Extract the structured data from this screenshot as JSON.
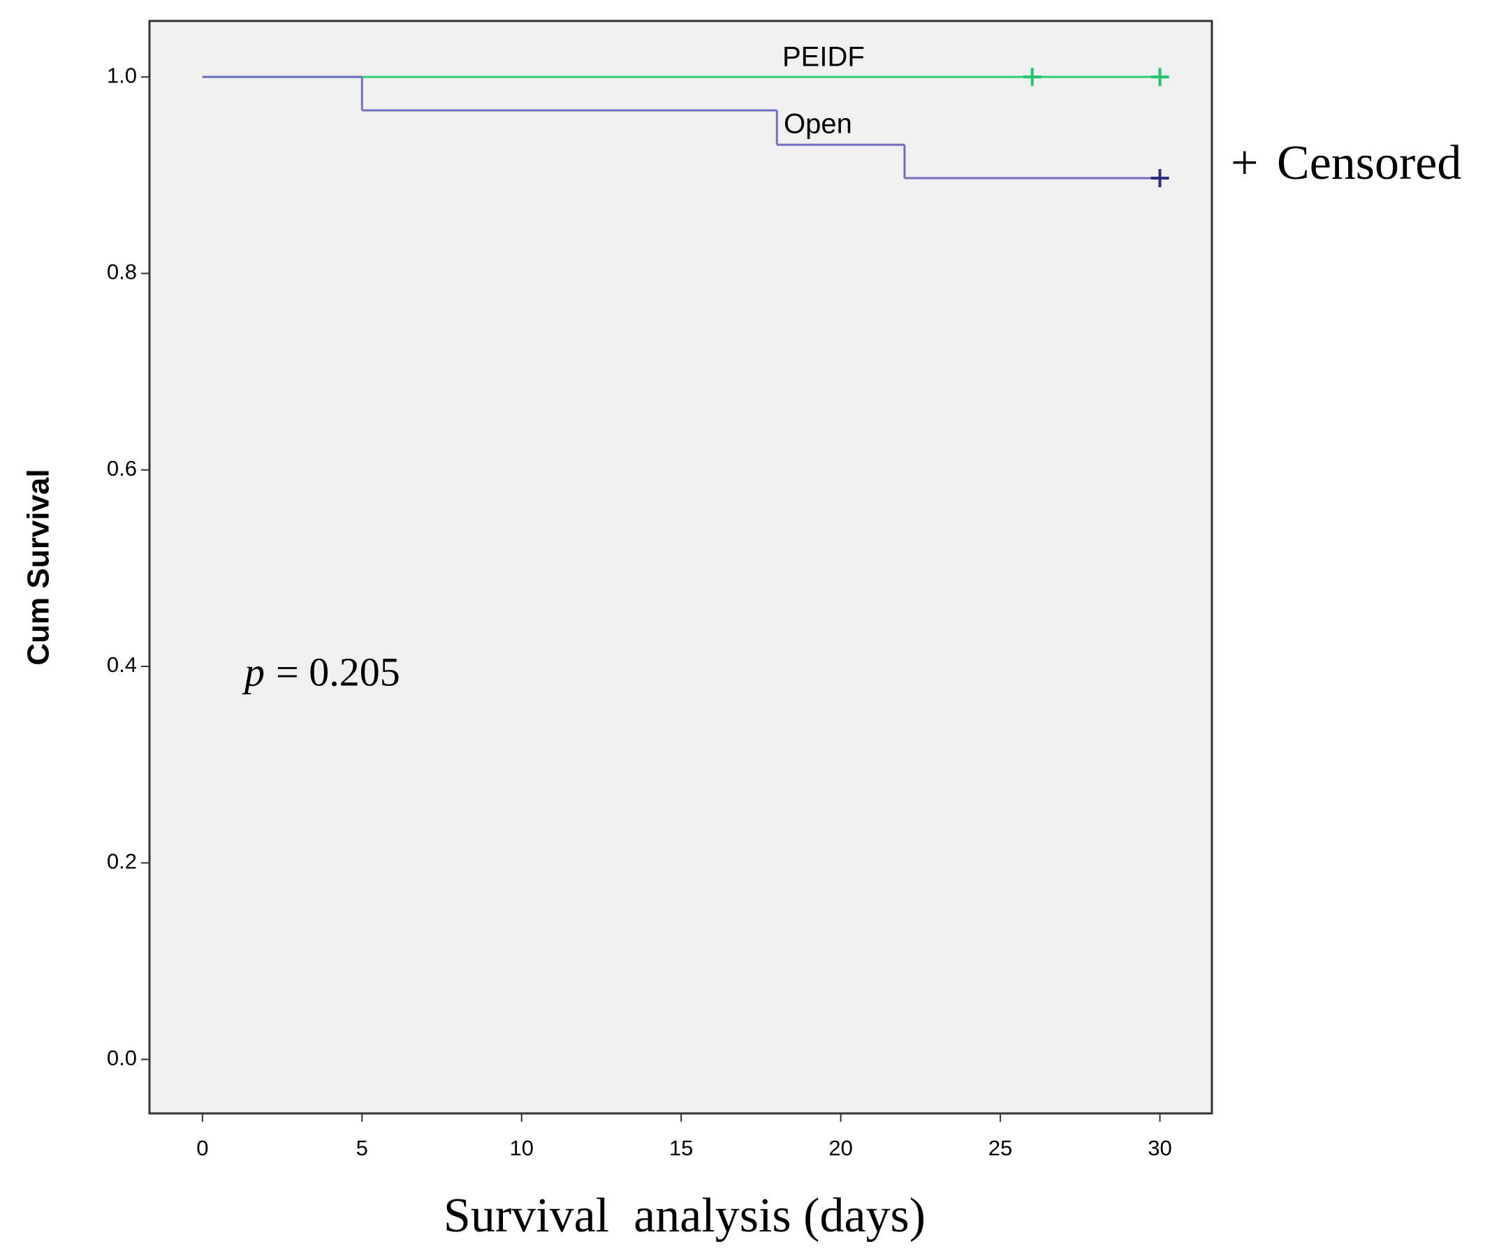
{
  "chart_data": {
    "type": "step",
    "y_label": "Cum Survival",
    "x_label": "Survival  analysis (days)",
    "legend": {
      "symbol": "+",
      "text": "Censored"
    },
    "annotation": {
      "symbol": "p",
      "text": "= 0.205"
    },
    "xlim": [
      -1.66,
      31.63
    ],
    "ylim": [
      -0.055,
      1.057
    ],
    "xticks": [
      0,
      5,
      10,
      15,
      20,
      25,
      30
    ],
    "yticks": [
      {
        "value": 0,
        "label": "0.0"
      },
      {
        "value": 0.2,
        "label": "0.2"
      },
      {
        "value": 0.4,
        "label": "0.4"
      },
      {
        "value": 0.6,
        "label": "0.6"
      },
      {
        "value": 0.8,
        "label": "0.8"
      },
      {
        "value": 1,
        "label": "1.0"
      }
    ],
    "series": [
      {
        "name": "PEIDF",
        "color": "#2fcf78",
        "censor_color": "#22c46a",
        "x": [
          0,
          30
        ],
        "values": [
          1,
          1
        ],
        "censored_x": [
          26,
          30
        ],
        "censored_values": [
          1,
          1
        ]
      },
      {
        "name": "Open",
        "color": "#7070c0",
        "censor_color": "#2a2a85",
        "x": [
          0,
          5,
          18,
          22,
          30
        ],
        "values": [
          1,
          0.966,
          0.931,
          0.897,
          0.897
        ],
        "censored_x": [
          30
        ],
        "censored_values": [
          0.897
        ]
      }
    ]
  }
}
